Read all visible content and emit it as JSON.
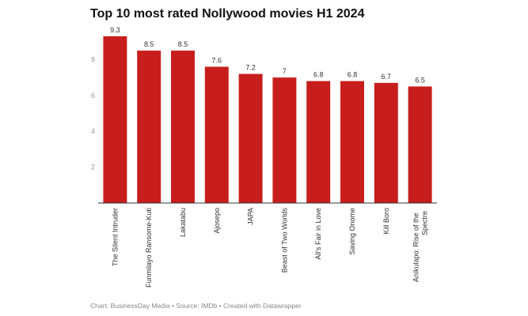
{
  "chart_data": {
    "type": "bar",
    "title": "Top 10 most rated Nollywood movies H1 2024",
    "categories": [
      "The Silent Intruder",
      "Funmilayo Ransome-Kuti",
      "Lakatabu",
      "Ajosepo",
      "JAPA",
      "Beast of Two Worlds",
      "All's Fair in Love",
      "Saving Onome",
      "Kill Boro",
      "Anikulapo: Rise of the Spectre"
    ],
    "values": [
      9.3,
      8.5,
      8.5,
      7.6,
      7.2,
      7,
      6.8,
      6.8,
      6.7,
      6.5
    ],
    "color": "#c71e1d",
    "ylim": [
      0,
      10
    ],
    "yticks": [
      2,
      4,
      6,
      8
    ],
    "grid": false,
    "source": "Chart: BusinessDay Media • Source: IMDb • Created with Datawrapper"
  }
}
